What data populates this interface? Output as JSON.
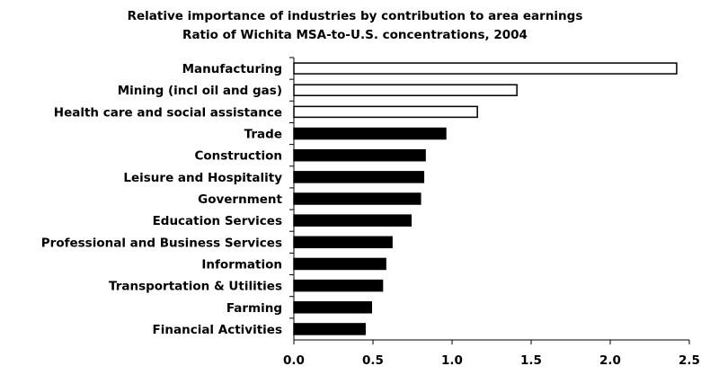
{
  "chart_data": {
    "type": "bar",
    "orientation": "horizontal",
    "title": "Relative importance of industries by contribution to area earnings",
    "subtitle": "Ratio of Wichita MSA-to-U.S. concentrations, 2004",
    "xlabel": "",
    "ylabel": "",
    "xlim": [
      0,
      2.5
    ],
    "xticks": [
      "0.0",
      "0.5",
      "1.0",
      "1.5",
      "2.0",
      "2.5"
    ],
    "grid": false,
    "categories": [
      "Manufacturing",
      "Mining (incl oil and gas)",
      "Health care and social assistance",
      "Trade",
      "Construction",
      "Leisure and Hospitality",
      "Government",
      "Education Services",
      "Professional and Business Services",
      "Information",
      "Transportation & Utilities",
      "Farming",
      "Financial Activities"
    ],
    "values": [
      2.42,
      1.41,
      1.16,
      0.96,
      0.83,
      0.82,
      0.8,
      0.74,
      0.62,
      0.58,
      0.56,
      0.49,
      0.45
    ],
    "bar_styles": [
      "hollow",
      "hollow",
      "hollow",
      "filled",
      "filled",
      "filled",
      "filled",
      "filled",
      "filled",
      "filled",
      "filled",
      "filled",
      "filled"
    ],
    "colors": {
      "fill": "#000000",
      "hollow": "#ffffff",
      "stroke": "#000000"
    }
  }
}
